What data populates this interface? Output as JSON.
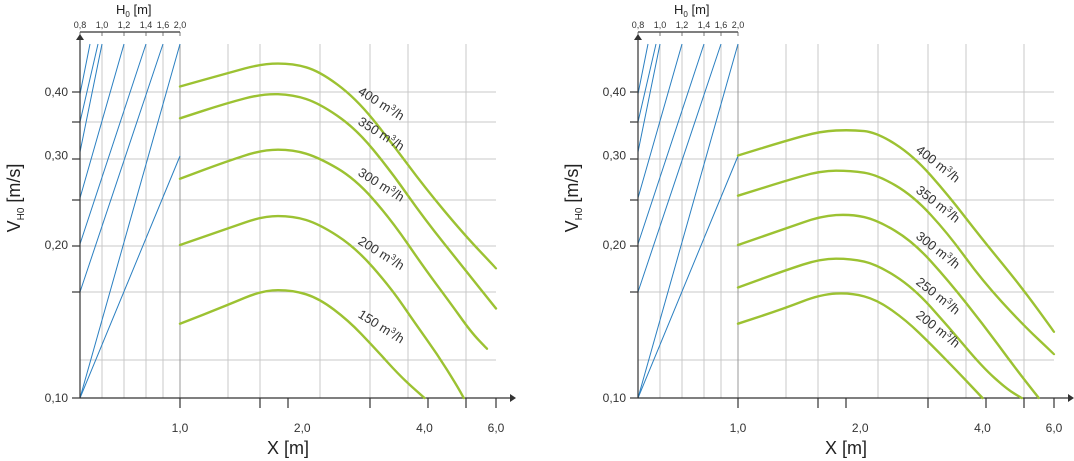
{
  "chart_data": [
    {
      "type": "line",
      "xlabel": "X [m]",
      "ylabel": "V",
      "ylabel_sub": "H0",
      "ylabel_unit": "[m/s]",
      "xscale": "log",
      "yscale": "log",
      "xlim": [
        1.0,
        6.0
      ],
      "ylim": [
        0.1,
        0.46
      ],
      "xticks": [
        {
          "v": 1.0,
          "label": "1,0"
        },
        {
          "v": 2.0,
          "label": "2,0"
        },
        {
          "v": 4.0,
          "label": "4,0"
        },
        {
          "v": 6.0,
          "label": "6,0"
        }
      ],
      "yticks": [
        {
          "v": 0.1,
          "label": "0,10"
        },
        {
          "v": 0.2,
          "label": "0,20"
        },
        {
          "v": 0.3,
          "label": "0,30"
        },
        {
          "v": 0.4,
          "label": "0,40"
        }
      ],
      "top_axis": {
        "label": "H",
        "label_sub": "0",
        "label_unit": "[m]",
        "ticks": [
          "0,8",
          "1,0",
          "1,2",
          "1,4",
          "1,6",
          "2,0"
        ]
      },
      "grid": true,
      "series": [
        {
          "name": "400 m³/h",
          "label_main": "400 m",
          "label_sup": "3",
          "label_end": "/h",
          "x": [
            1.0,
            1.3,
            1.6,
            1.9,
            2.2,
            2.7,
            3.3,
            4.0,
            5.0,
            6.0
          ],
          "y": [
            0.41,
            0.435,
            0.455,
            0.455,
            0.44,
            0.39,
            0.32,
            0.26,
            0.21,
            0.18
          ]
        },
        {
          "name": "350 m³/h",
          "label_main": "350 m",
          "label_sup": "3",
          "label_end": "/h",
          "x": [
            1.0,
            1.3,
            1.6,
            1.9,
            2.2,
            2.7,
            3.3,
            4.0,
            5.0,
            6.0
          ],
          "y": [
            0.355,
            0.38,
            0.397,
            0.395,
            0.38,
            0.34,
            0.28,
            0.225,
            0.18,
            0.15
          ]
        },
        {
          "name": "300 m³/h",
          "label_main": "300 m",
          "label_sup": "3",
          "label_end": "/h",
          "x": [
            1.0,
            1.3,
            1.6,
            1.9,
            2.2,
            2.7,
            3.3,
            4.0,
            4.6,
            5.2,
            5.7
          ],
          "y": [
            0.27,
            0.292,
            0.308,
            0.308,
            0.297,
            0.27,
            0.225,
            0.18,
            0.155,
            0.135,
            0.125
          ]
        },
        {
          "name": "200 m³/h",
          "label_main": "200 m",
          "label_sup": "3",
          "label_end": "/h",
          "x": [
            1.0,
            1.3,
            1.6,
            1.9,
            2.2,
            2.7,
            3.3,
            3.8,
            4.3,
            4.8,
            5.0
          ],
          "y": [
            0.2,
            0.215,
            0.228,
            0.228,
            0.22,
            0.198,
            0.165,
            0.14,
            0.122,
            0.106,
            0.1
          ]
        },
        {
          "name": "150 m³/h",
          "label_main": "150 m",
          "label_sup": "3",
          "label_end": "/h",
          "x": [
            1.0,
            1.3,
            1.6,
            1.9,
            2.2,
            2.6,
            3.0,
            3.5,
            4.0
          ],
          "y": [
            0.14,
            0.152,
            0.163,
            0.163,
            0.157,
            0.142,
            0.126,
            0.11,
            0.1
          ]
        }
      ]
    },
    {
      "type": "line",
      "xlabel": "X [m]",
      "ylabel": "V",
      "ylabel_sub": "H0",
      "ylabel_unit": "[m/s]",
      "xscale": "log",
      "yscale": "log",
      "xlim": [
        1.0,
        6.0
      ],
      "ylim": [
        0.1,
        0.46
      ],
      "xticks": [
        {
          "v": 1.0,
          "label": "1,0"
        },
        {
          "v": 2.0,
          "label": "2,0"
        },
        {
          "v": 4.0,
          "label": "4,0"
        },
        {
          "v": 6.0,
          "label": "6,0"
        }
      ],
      "yticks": [
        {
          "v": 0.1,
          "label": "0,10"
        },
        {
          "v": 0.2,
          "label": "0,20"
        },
        {
          "v": 0.3,
          "label": "0,30"
        },
        {
          "v": 0.4,
          "label": "0,40"
        }
      ],
      "top_axis": {
        "label": "H",
        "label_sub": "0",
        "label_unit": "[m]",
        "ticks": [
          "0,8",
          "1,0",
          "1,2",
          "1,4",
          "1,6",
          "2,0"
        ]
      },
      "grid": true,
      "series": [
        {
          "name": "400 m³/h",
          "label_main": "400 m",
          "label_sup": "3",
          "label_end": "/h",
          "x": [
            1.0,
            1.3,
            1.6,
            1.9,
            2.2,
            2.7,
            3.3,
            4.0,
            5.0,
            6.0
          ],
          "y": [
            0.3,
            0.32,
            0.335,
            0.337,
            0.333,
            0.3,
            0.25,
            0.205,
            0.165,
            0.135
          ]
        },
        {
          "name": "350 m³/h",
          "label_main": "350 m",
          "label_sup": "3",
          "label_end": "/h",
          "x": [
            1.0,
            1.3,
            1.6,
            1.9,
            2.2,
            2.7,
            3.3,
            4.0,
            5.0,
            6.0
          ],
          "y": [
            0.25,
            0.267,
            0.28,
            0.28,
            0.275,
            0.25,
            0.21,
            0.17,
            0.14,
            0.122
          ]
        },
        {
          "name": "300 m³/h",
          "label_main": "300 m",
          "label_sup": "3",
          "label_end": "/h",
          "x": [
            1.0,
            1.3,
            1.6,
            1.9,
            2.2,
            2.7,
            3.3,
            4.0,
            4.8,
            5.5
          ],
          "y": [
            0.2,
            0.215,
            0.228,
            0.23,
            0.224,
            0.203,
            0.17,
            0.14,
            0.115,
            0.1
          ]
        },
        {
          "name": "250 m³/h",
          "label_main": "250 m",
          "label_sup": "3",
          "label_end": "/h",
          "x": [
            1.0,
            1.3,
            1.6,
            1.9,
            2.2,
            2.7,
            3.3,
            4.0,
            4.6,
            5.0
          ],
          "y": [
            0.165,
            0.178,
            0.188,
            0.188,
            0.183,
            0.165,
            0.138,
            0.115,
            0.104,
            0.1
          ]
        },
        {
          "name": "200 m³/h",
          "label_main": "200 m",
          "label_sup": "3",
          "label_end": "/h",
          "x": [
            1.0,
            1.3,
            1.6,
            1.9,
            2.2,
            2.6,
            3.0,
            3.5,
            4.0
          ],
          "y": [
            0.14,
            0.15,
            0.16,
            0.161,
            0.156,
            0.142,
            0.127,
            0.112,
            0.1
          ]
        }
      ]
    }
  ]
}
